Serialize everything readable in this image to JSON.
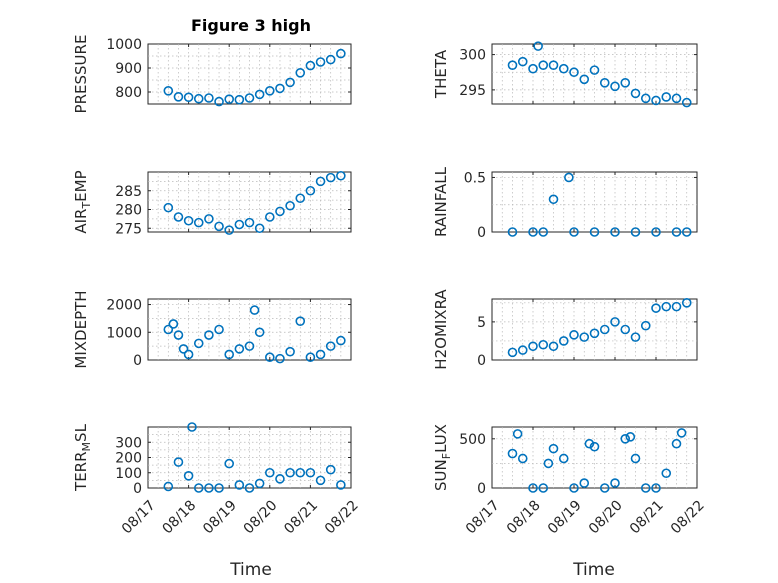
{
  "figure": {
    "title": "Figure 3 high",
    "xlabel": "Time",
    "x_ticks": [
      "08/17",
      "08/18",
      "08/19",
      "08/20",
      "08/21",
      "08/22"
    ]
  },
  "colors": {
    "marker": "#0072BD",
    "axis": "#262626",
    "grid": "#b8b8b8"
  },
  "chart_data": [
    {
      "type": "scatter",
      "id": "pressure",
      "ylabel": "PRESSURE",
      "xlim": [
        "08/17",
        "08/22"
      ],
      "ylim": [
        750,
        1000
      ],
      "yticks": [
        800,
        900,
        1000
      ],
      "x": [
        "08/17 12:00",
        "08/17 18:00",
        "08/18 00:00",
        "08/18 06:00",
        "08/18 12:00",
        "08/18 18:00",
        "08/19 00:00",
        "08/19 06:00",
        "08/19 12:00",
        "08/19 18:00",
        "08/20 00:00",
        "08/20 06:00",
        "08/20 12:00",
        "08/20 18:00",
        "08/21 00:00",
        "08/21 06:00",
        "08/21 12:00",
        "08/21 18:00"
      ],
      "values": [
        805,
        780,
        778,
        772,
        775,
        760,
        770,
        768,
        775,
        790,
        805,
        815,
        840,
        880,
        910,
        925,
        935,
        960
      ]
    },
    {
      "type": "scatter",
      "id": "theta",
      "ylabel": "THETA",
      "xlim": [
        "08/17",
        "08/22"
      ],
      "ylim": [
        293,
        301.5
      ],
      "yticks": [
        295,
        300
      ],
      "x": [
        "08/17 12:00",
        "08/17 18:00",
        "08/18 00:00",
        "08/18 03:00",
        "08/18 06:00",
        "08/18 12:00",
        "08/18 18:00",
        "08/19 00:00",
        "08/19 06:00",
        "08/19 12:00",
        "08/19 18:00",
        "08/20 00:00",
        "08/20 06:00",
        "08/20 12:00",
        "08/20 18:00",
        "08/21 00:00",
        "08/21 06:00",
        "08/21 12:00",
        "08/21 18:00"
      ],
      "values": [
        298.5,
        299.0,
        298.0,
        301.2,
        298.5,
        298.5,
        298.0,
        297.5,
        296.5,
        297.8,
        296.0,
        295.5,
        296.0,
        294.5,
        293.8,
        293.5,
        294.0,
        293.8,
        293.2
      ]
    },
    {
      "type": "scatter",
      "id": "air_temp",
      "ylabel": "AIR_TEMP",
      "xlim": [
        "08/17",
        "08/22"
      ],
      "ylim": [
        274,
        290
      ],
      "yticks": [
        275,
        280,
        285
      ],
      "x": [
        "08/17 12:00",
        "08/17 18:00",
        "08/18 00:00",
        "08/18 06:00",
        "08/18 12:00",
        "08/18 18:00",
        "08/19 00:00",
        "08/19 06:00",
        "08/19 12:00",
        "08/19 18:00",
        "08/20 00:00",
        "08/20 06:00",
        "08/20 12:00",
        "08/20 18:00",
        "08/21 00:00",
        "08/21 06:00",
        "08/21 12:00",
        "08/21 18:00"
      ],
      "values": [
        280.5,
        278.0,
        277.0,
        276.5,
        277.5,
        275.5,
        274.5,
        276.0,
        276.5,
        275.0,
        278.0,
        279.5,
        281.0,
        283.0,
        285.0,
        287.5,
        288.5,
        289.0
      ]
    },
    {
      "type": "scatter",
      "id": "rainfall",
      "ylabel": "RAINFALL",
      "xlim": [
        "08/17",
        "08/22"
      ],
      "ylim": [
        0,
        0.55
      ],
      "yticks": [
        0,
        0.5
      ],
      "x": [
        "08/17 12:00",
        "08/18 00:00",
        "08/18 06:00",
        "08/18 12:00",
        "08/18 21:00",
        "08/19 00:00",
        "08/19 12:00",
        "08/20 00:00",
        "08/20 12:00",
        "08/21 00:00",
        "08/21 12:00",
        "08/21 18:00"
      ],
      "values": [
        0,
        0,
        0,
        0.3,
        0.5,
        0,
        0,
        0,
        0,
        0,
        0,
        0
      ]
    },
    {
      "type": "scatter",
      "id": "mixdepth",
      "ylabel": "MIXDEPTH",
      "xlim": [
        "08/17",
        "08/22"
      ],
      "ylim": [
        0,
        2200
      ],
      "yticks": [
        0,
        1000,
        2000
      ],
      "x": [
        "08/17 12:00",
        "08/17 15:00",
        "08/17 18:00",
        "08/17 21:00",
        "08/18 00:00",
        "08/18 06:00",
        "08/18 12:00",
        "08/18 18:00",
        "08/19 00:00",
        "08/19 06:00",
        "08/19 12:00",
        "08/19 15:00",
        "08/19 18:00",
        "08/20 00:00",
        "08/20 06:00",
        "08/20 12:00",
        "08/20 18:00",
        "08/21 00:00",
        "08/21 06:00",
        "08/21 12:00",
        "08/21 18:00"
      ],
      "values": [
        1100,
        1300,
        900,
        400,
        200,
        600,
        900,
        1100,
        200,
        400,
        500,
        1800,
        1000,
        100,
        50,
        300,
        1400,
        100,
        200,
        500,
        700
      ]
    },
    {
      "type": "scatter",
      "id": "h2omixra",
      "ylabel": "H2OMIXRA",
      "xlim": [
        "08/17",
        "08/22"
      ],
      "ylim": [
        0,
        8
      ],
      "yticks": [
        0,
        5
      ],
      "x": [
        "08/17 12:00",
        "08/17 18:00",
        "08/18 00:00",
        "08/18 06:00",
        "08/18 12:00",
        "08/18 18:00",
        "08/19 00:00",
        "08/19 06:00",
        "08/19 12:00",
        "08/19 18:00",
        "08/20 00:00",
        "08/20 06:00",
        "08/20 12:00",
        "08/20 18:00",
        "08/21 00:00",
        "08/21 06:00",
        "08/21 12:00",
        "08/21 18:00"
      ],
      "values": [
        1.0,
        1.3,
        1.8,
        2.0,
        1.8,
        2.5,
        3.3,
        3.0,
        3.5,
        4.0,
        5.0,
        4.0,
        3.0,
        4.5,
        6.8,
        7.0,
        7.0,
        7.5
      ]
    },
    {
      "type": "scatter",
      "id": "terr_msl",
      "ylabel": "TERR_MSL",
      "xlim": [
        "08/17",
        "08/22"
      ],
      "ylim": [
        0,
        400
      ],
      "yticks": [
        0,
        100,
        200,
        300
      ],
      "x": [
        "08/17 12:00",
        "08/17 18:00",
        "08/18 00:00",
        "08/18 02:00",
        "08/18 06:00",
        "08/18 12:00",
        "08/18 18:00",
        "08/19 00:00",
        "08/19 06:00",
        "08/19 12:00",
        "08/19 18:00",
        "08/20 00:00",
        "08/20 06:00",
        "08/20 12:00",
        "08/20 18:00",
        "08/21 00:00",
        "08/21 06:00",
        "08/21 12:00",
        "08/21 18:00"
      ],
      "values": [
        10,
        170,
        80,
        400,
        0,
        0,
        0,
        160,
        20,
        0,
        30,
        100,
        60,
        100,
        100,
        100,
        50,
        120,
        20
      ]
    },
    {
      "type": "scatter",
      "id": "sun_flux",
      "ylabel": "SUN_FLUX",
      "xlim": [
        "08/17",
        "08/22"
      ],
      "ylim": [
        0,
        620
      ],
      "yticks": [
        0,
        500
      ],
      "x": [
        "08/17 12:00",
        "08/17 15:00",
        "08/17 18:00",
        "08/18 00:00",
        "08/18 06:00",
        "08/18 09:00",
        "08/18 12:00",
        "08/18 18:00",
        "08/19 00:00",
        "08/19 06:00",
        "08/19 09:00",
        "08/19 12:00",
        "08/19 18:00",
        "08/20 00:00",
        "08/20 06:00",
        "08/20 09:00",
        "08/20 12:00",
        "08/20 18:00",
        "08/21 00:00",
        "08/21 06:00",
        "08/21 12:00",
        "08/21 15:00"
      ],
      "values": [
        350,
        550,
        300,
        0,
        0,
        250,
        400,
        300,
        0,
        50,
        450,
        420,
        0,
        50,
        500,
        520,
        300,
        0,
        0,
        150,
        450,
        560
      ]
    }
  ]
}
